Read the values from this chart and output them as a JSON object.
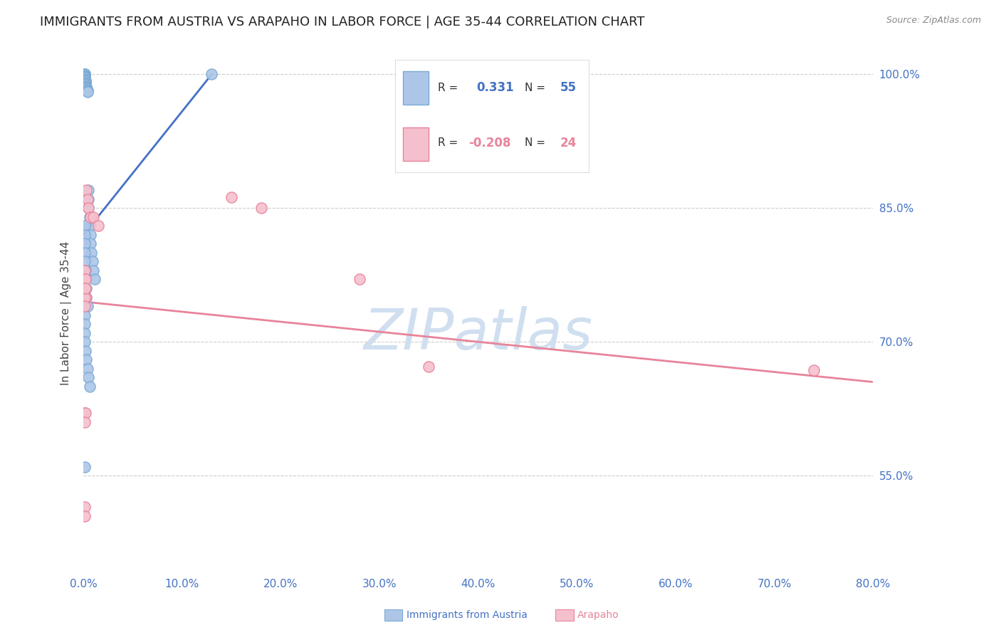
{
  "title": "IMMIGRANTS FROM AUSTRIA VS ARAPAHO IN LABOR FORCE | AGE 35-44 CORRELATION CHART",
  "source": "Source: ZipAtlas.com",
  "ylabel": "In Labor Force | Age 35-44",
  "xlim": [
    0.0,
    0.8
  ],
  "ylim": [
    0.44,
    1.025
  ],
  "xticks": [
    0.0,
    0.1,
    0.2,
    0.3,
    0.4,
    0.5,
    0.6,
    0.7,
    0.8
  ],
  "xticklabels": [
    "0.0%",
    "10.0%",
    "20.0%",
    "30.0%",
    "40.0%",
    "50.0%",
    "60.0%",
    "70.0%",
    "80.0%"
  ],
  "yticks": [
    0.55,
    0.7,
    0.85,
    1.0
  ],
  "yticklabels": [
    "55.0%",
    "70.0%",
    "85.0%",
    "100.0%"
  ],
  "grid_color": "#cccccc",
  "background_color": "#ffffff",
  "austria_color": "#adc6e8",
  "austria_edge_color": "#7aaad4",
  "arapaho_color": "#f5c0ce",
  "arapaho_edge_color": "#e8849a",
  "legend_blue_color": "#4472c4",
  "legend_pink_color": "#e8849a",
  "austria_line_color": "#4472c4",
  "arapaho_line_color": "#e8849a",
  "title_color": "#222222",
  "source_color": "#888888",
  "axis_label_color": "#444444",
  "tick_color": "#4472c4",
  "watermark_color": "#d0dff0",
  "austria_r": 0.331,
  "austria_n": 55,
  "arapaho_r": -0.208,
  "arapaho_n": 24,
  "austria_x": [
    0.001,
    0.001,
    0.001,
    0.001,
    0.001,
    0.001,
    0.001,
    0.001,
    0.001,
    0.002,
    0.002,
    0.002,
    0.002,
    0.002,
    0.002,
    0.002,
    0.003,
    0.003,
    0.003,
    0.003,
    0.004,
    0.004,
    0.004,
    0.005,
    0.005,
    0.005,
    0.006,
    0.006,
    0.007,
    0.007,
    0.008,
    0.009,
    0.01,
    0.011,
    0.001,
    0.001,
    0.001,
    0.001,
    0.001,
    0.002,
    0.002,
    0.003,
    0.003,
    0.004,
    0.001,
    0.001,
    0.001,
    0.001,
    0.002,
    0.003,
    0.004,
    0.005,
    0.006,
    0.13,
    0.001
  ],
  "austria_y": [
    1.0,
    1.0,
    1.0,
    0.999,
    0.998,
    0.997,
    0.996,
    0.995,
    0.994,
    0.993,
    0.992,
    0.991,
    0.99,
    0.989,
    0.988,
    0.987,
    0.986,
    0.985,
    0.984,
    0.983,
    0.982,
    0.981,
    0.98,
    0.87,
    0.86,
    0.85,
    0.84,
    0.83,
    0.82,
    0.81,
    0.8,
    0.79,
    0.78,
    0.77,
    0.83,
    0.82,
    0.81,
    0.8,
    0.79,
    0.78,
    0.77,
    0.76,
    0.75,
    0.74,
    0.73,
    0.72,
    0.71,
    0.7,
    0.69,
    0.68,
    0.67,
    0.66,
    0.65,
    1.0,
    0.56
  ],
  "arapaho_x": [
    0.003,
    0.004,
    0.005,
    0.007,
    0.01,
    0.015,
    0.001,
    0.001,
    0.002,
    0.003,
    0.001,
    0.001,
    0.002,
    0.001,
    0.28,
    0.35,
    0.15,
    0.18,
    0.001,
    0.002,
    0.001,
    0.001,
    0.74,
    0.001
  ],
  "arapaho_y": [
    0.87,
    0.86,
    0.85,
    0.84,
    0.84,
    0.83,
    0.78,
    0.77,
    0.77,
    0.75,
    0.76,
    0.75,
    0.76,
    0.74,
    0.77,
    0.672,
    0.862,
    0.85,
    0.62,
    0.62,
    0.61,
    0.515,
    0.668,
    0.505
  ]
}
